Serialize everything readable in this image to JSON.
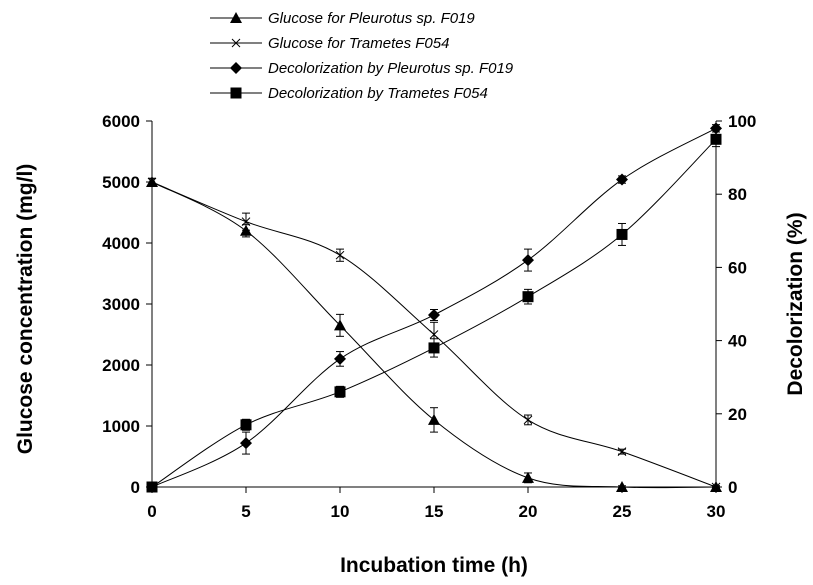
{
  "chart_data": {
    "type": "line",
    "x": [
      0,
      5,
      10,
      15,
      20,
      25,
      30
    ],
    "xlabel": "Incubation time (h)",
    "ylabel_left": "Glucose concentration (mg/l)",
    "ylabel_right": "Decolorization (%)",
    "xlim": [
      0,
      30
    ],
    "ylim_left": [
      0,
      6000
    ],
    "ylim_right": [
      0,
      100
    ],
    "xticks": [
      "0",
      "5",
      "10",
      "15",
      "20",
      "25",
      "30"
    ],
    "yticks_left": [
      "0",
      "1000",
      "2000",
      "3000",
      "4000",
      "5000",
      "6000"
    ],
    "yticks_right": [
      "0",
      "20",
      "40",
      "60",
      "80",
      "100"
    ],
    "grid": false,
    "legend_position": "top-center",
    "series": [
      {
        "name": "Glucose for Pleurotus sp. F019",
        "axis": "left",
        "marker": "triangle",
        "values": [
          5000,
          4200,
          2650,
          1100,
          150,
          0,
          0
        ],
        "errors": [
          60,
          100,
          180,
          200,
          80,
          20,
          20
        ]
      },
      {
        "name": "Glucose for Trametes F054",
        "axis": "left",
        "marker": "x",
        "values": [
          5000,
          4350,
          3800,
          2500,
          1100,
          580,
          0
        ],
        "errors": [
          60,
          140,
          100,
          200,
          80,
          40,
          20
        ]
      },
      {
        "name": "Decolorization by Pleurotus sp. F019",
        "axis": "right",
        "marker": "diamond",
        "values": [
          0,
          12,
          35,
          47,
          62,
          84,
          98
        ],
        "errors": [
          0.5,
          3,
          2,
          1.5,
          3,
          1,
          1
        ]
      },
      {
        "name": "Decolorization by Trametes F054",
        "axis": "right",
        "marker": "square",
        "values": [
          0,
          17,
          26,
          38,
          52,
          69,
          95
        ],
        "errors": [
          0.5,
          1.5,
          1.5,
          2.5,
          2,
          3,
          2
        ]
      }
    ]
  }
}
